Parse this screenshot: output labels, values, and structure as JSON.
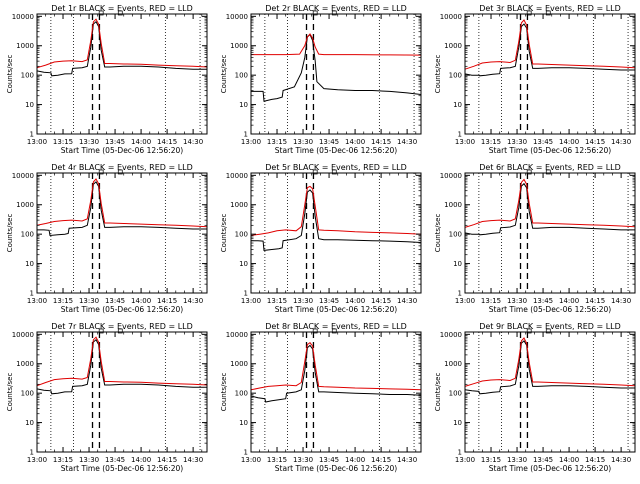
{
  "figure": {
    "background": "#ffffff",
    "events_color": "#000000",
    "lld_color": "#e00000",
    "axis_color": "#000000"
  },
  "common": {
    "ylabel": "Counts/sec",
    "xlabel": "Start Time (05-Dec-06 12:56:20)",
    "x_ticks": [
      "13:00",
      "13:15",
      "13:30",
      "13:45",
      "14:00",
      "14:15",
      "14:30"
    ],
    "x_tick_minutes": [
      0,
      15,
      30,
      45,
      60,
      75,
      90
    ],
    "y_ticks": [
      "1",
      "10",
      "100",
      "1000",
      "10000"
    ],
    "y_tick_values": [
      1,
      10,
      100,
      1000,
      10000
    ],
    "xlim_minutes": [
      0,
      98
    ],
    "ylim": [
      1,
      12000
    ],
    "yscale": "log",
    "dotted_vlines_minutes": [
      8,
      21,
      74,
      94
    ],
    "dashed_vlines_minutes": [
      32,
      36
    ],
    "grid": false
  },
  "chart_data": [
    {
      "type": "line",
      "title": "Det 1r BLACK = Events, RED = LLD",
      "series": [
        {
          "name": "Events",
          "x": [
            0,
            4,
            8,
            8.5,
            12,
            16,
            20,
            20.5,
            26,
            29,
            31,
            32.5,
            34,
            35.5,
            37,
            39,
            42,
            50,
            60,
            70,
            80,
            90,
            98
          ],
          "y": [
            140,
            125,
            120,
            95,
            100,
            110,
            112,
            170,
            180,
            200,
            900,
            5500,
            6500,
            4500,
            700,
            190,
            190,
            200,
            200,
            190,
            170,
            160,
            160
          ]
        },
        {
          "name": "LLD",
          "x": [
            0,
            5,
            10,
            15,
            20,
            26,
            29,
            31,
            32.5,
            34,
            35.5,
            37,
            39,
            42,
            50,
            60,
            70,
            80,
            90,
            98
          ],
          "y": [
            180,
            220,
            280,
            300,
            310,
            290,
            330,
            1500,
            6500,
            8000,
            5500,
            1200,
            250,
            250,
            240,
            235,
            220,
            210,
            200,
            190
          ]
        }
      ]
    },
    {
      "type": "line",
      "title": "Det 2r BLACK = Events, RED = LLD",
      "series": [
        {
          "name": "Events",
          "x": [
            0,
            4,
            7,
            7.5,
            12,
            15,
            18,
            18.5,
            25,
            29,
            31,
            32.5,
            34,
            35.5,
            37,
            38,
            42,
            50,
            60,
            70,
            80,
            90,
            98
          ],
          "y": [
            28,
            28,
            28,
            13,
            15,
            16,
            18,
            30,
            40,
            120,
            400,
            2000,
            2400,
            1500,
            300,
            60,
            35,
            32,
            30,
            30,
            28,
            25,
            22
          ]
        },
        {
          "name": "LLD",
          "x": [
            0,
            10,
            20,
            28,
            31,
            32.5,
            34,
            35.5,
            37,
            39,
            42,
            60,
            80,
            98
          ],
          "y": [
            500,
            500,
            500,
            520,
            1000,
            2000,
            2500,
            1800,
            900,
            520,
            500,
            500,
            490,
            480
          ]
        }
      ]
    },
    {
      "type": "line",
      "title": "Det 3r BLACK = Events, RED = LLD",
      "series": [
        {
          "name": "Events",
          "x": [
            0,
            4,
            8,
            8.5,
            12,
            16,
            20,
            20.5,
            26,
            29,
            31,
            32.5,
            34,
            35.5,
            37,
            39,
            42,
            50,
            60,
            70,
            80,
            90,
            98
          ],
          "y": [
            110,
            100,
            100,
            95,
            100,
            108,
            112,
            170,
            180,
            200,
            900,
            4500,
            5500,
            4000,
            650,
            170,
            170,
            180,
            180,
            170,
            160,
            150,
            150
          ]
        },
        {
          "name": "LLD",
          "x": [
            0,
            5,
            10,
            15,
            20,
            26,
            29,
            31,
            32.5,
            34,
            35.5,
            37,
            39,
            42,
            50,
            60,
            70,
            80,
            90,
            98
          ],
          "y": [
            160,
            200,
            260,
            280,
            290,
            270,
            320,
            1400,
            6000,
            7500,
            5000,
            1100,
            240,
            240,
            230,
            220,
            210,
            200,
            190,
            180
          ]
        }
      ]
    },
    {
      "type": "line",
      "title": "Det 4r BLACK = Events, RED = LLD",
      "series": [
        {
          "name": "Events",
          "x": [
            0,
            4,
            7,
            7.5,
            12,
            16,
            18,
            18.5,
            26,
            29,
            31,
            32.5,
            34,
            35.5,
            37,
            39,
            42,
            50,
            60,
            70,
            80,
            90,
            98
          ],
          "y": [
            140,
            140,
            135,
            90,
            95,
            100,
            105,
            160,
            170,
            200,
            800,
            5000,
            6000,
            4200,
            650,
            170,
            170,
            180,
            180,
            170,
            160,
            150,
            150
          ]
        },
        {
          "name": "LLD",
          "x": [
            0,
            5,
            10,
            15,
            20,
            26,
            29,
            31,
            32.5,
            34,
            35.5,
            37,
            39,
            42,
            50,
            60,
            70,
            80,
            90,
            98
          ],
          "y": [
            200,
            230,
            270,
            290,
            300,
            280,
            330,
            1400,
            6000,
            7500,
            5200,
            1100,
            240,
            240,
            230,
            220,
            210,
            200,
            190,
            180
          ]
        }
      ]
    },
    {
      "type": "line",
      "title": "Det 5r BLACK = Events, RED = LLD",
      "series": [
        {
          "name": "Events",
          "x": [
            0,
            4,
            7,
            7.5,
            12,
            16,
            18,
            18.5,
            26,
            29,
            31,
            32.5,
            34,
            35.5,
            37,
            39,
            42,
            50,
            60,
            70,
            80,
            90,
            98
          ],
          "y": [
            60,
            60,
            58,
            28,
            30,
            32,
            34,
            60,
            70,
            90,
            500,
            2700,
            3200,
            2500,
            400,
            70,
            65,
            65,
            62,
            60,
            58,
            55,
            52
          ]
        },
        {
          "name": "LLD",
          "x": [
            0,
            5,
            10,
            15,
            20,
            26,
            29,
            31,
            32.5,
            34,
            35.5,
            37,
            39,
            42,
            50,
            60,
            70,
            80,
            90,
            98
          ],
          "y": [
            90,
            100,
            110,
            130,
            140,
            130,
            180,
            1000,
            3800,
            4200,
            3500,
            900,
            140,
            135,
            130,
            120,
            115,
            110,
            105,
            100
          ]
        }
      ]
    },
    {
      "type": "line",
      "title": "Det 6r BLACK = Events, RED = LLD",
      "series": [
        {
          "name": "Events",
          "x": [
            0,
            4,
            8,
            8.5,
            12,
            16,
            20,
            20.5,
            26,
            29,
            31,
            32.5,
            34,
            35.5,
            37,
            39,
            42,
            50,
            60,
            70,
            80,
            90,
            98
          ],
          "y": [
            110,
            100,
            100,
            95,
            100,
            108,
            112,
            165,
            175,
            200,
            800,
            4300,
            5200,
            3800,
            600,
            160,
            160,
            170,
            170,
            160,
            150,
            140,
            140
          ]
        },
        {
          "name": "LLD",
          "x": [
            0,
            5,
            10,
            15,
            20,
            26,
            29,
            31,
            32.5,
            34,
            35.5,
            37,
            39,
            42,
            50,
            60,
            70,
            80,
            90,
            98
          ],
          "y": [
            170,
            210,
            270,
            290,
            300,
            280,
            330,
            1400,
            5800,
            7200,
            5000,
            1100,
            240,
            240,
            230,
            220,
            210,
            200,
            190,
            180
          ]
        }
      ]
    },
    {
      "type": "line",
      "title": "Det 7r BLACK = Events, RED = LLD",
      "series": [
        {
          "name": "Events",
          "x": [
            0,
            4,
            8,
            8.5,
            12,
            16,
            20,
            20.5,
            26,
            29,
            31,
            32.5,
            34,
            35.5,
            37,
            39,
            42,
            50,
            60,
            70,
            80,
            90,
            98
          ],
          "y": [
            140,
            125,
            120,
            95,
            100,
            110,
            112,
            170,
            180,
            200,
            900,
            5500,
            6500,
            4500,
            700,
            190,
            190,
            200,
            200,
            190,
            170,
            160,
            160
          ]
        },
        {
          "name": "LLD",
          "x": [
            0,
            5,
            10,
            15,
            20,
            26,
            29,
            31,
            32.5,
            34,
            35.5,
            37,
            39,
            42,
            50,
            60,
            70,
            80,
            90,
            98
          ],
          "y": [
            180,
            230,
            290,
            310,
            320,
            300,
            340,
            1500,
            6500,
            8000,
            5500,
            1200,
            250,
            250,
            240,
            235,
            220,
            210,
            200,
            190
          ]
        }
      ]
    },
    {
      "type": "line",
      "title": "Det 8r BLACK = Events, RED = LLD",
      "series": [
        {
          "name": "Events",
          "x": [
            0,
            4,
            8,
            8.5,
            12,
            16,
            20,
            20.5,
            26,
            29,
            31,
            32.5,
            34,
            35.5,
            37,
            39,
            42,
            50,
            60,
            70,
            80,
            90,
            98
          ],
          "y": [
            80,
            70,
            65,
            50,
            55,
            60,
            65,
            100,
            110,
            130,
            600,
            3500,
            4200,
            3200,
            500,
            110,
            110,
            105,
            100,
            95,
            90,
            90,
            85
          ]
        },
        {
          "name": "LLD",
          "x": [
            0,
            5,
            10,
            15,
            20,
            26,
            29,
            31,
            32.5,
            34,
            35.5,
            37,
            39,
            42,
            50,
            60,
            70,
            80,
            90,
            98
          ],
          "y": [
            130,
            150,
            170,
            180,
            190,
            180,
            230,
            1200,
            4500,
            5200,
            4000,
            900,
            170,
            165,
            160,
            150,
            145,
            140,
            135,
            130
          ]
        }
      ]
    },
    {
      "type": "line",
      "title": "Det 9r BLACK = Events, RED = LLD",
      "series": [
        {
          "name": "Events",
          "x": [
            0,
            4,
            8,
            8.5,
            12,
            16,
            20,
            20.5,
            26,
            29,
            31,
            32.5,
            34,
            35.5,
            37,
            39,
            42,
            50,
            60,
            70,
            80,
            90,
            98
          ],
          "y": [
            130,
            120,
            115,
            95,
            100,
            108,
            112,
            165,
            175,
            200,
            850,
            5000,
            6000,
            4300,
            650,
            170,
            170,
            180,
            180,
            170,
            160,
            150,
            150
          ]
        },
        {
          "name": "LLD",
          "x": [
            0,
            5,
            10,
            15,
            20,
            26,
            29,
            31,
            32.5,
            34,
            35.5,
            37,
            39,
            42,
            50,
            60,
            70,
            80,
            90,
            98
          ],
          "y": [
            170,
            210,
            260,
            280,
            290,
            270,
            320,
            1400,
            6000,
            7500,
            5000,
            1100,
            240,
            240,
            230,
            220,
            210,
            200,
            190,
            180
          ]
        }
      ]
    }
  ]
}
